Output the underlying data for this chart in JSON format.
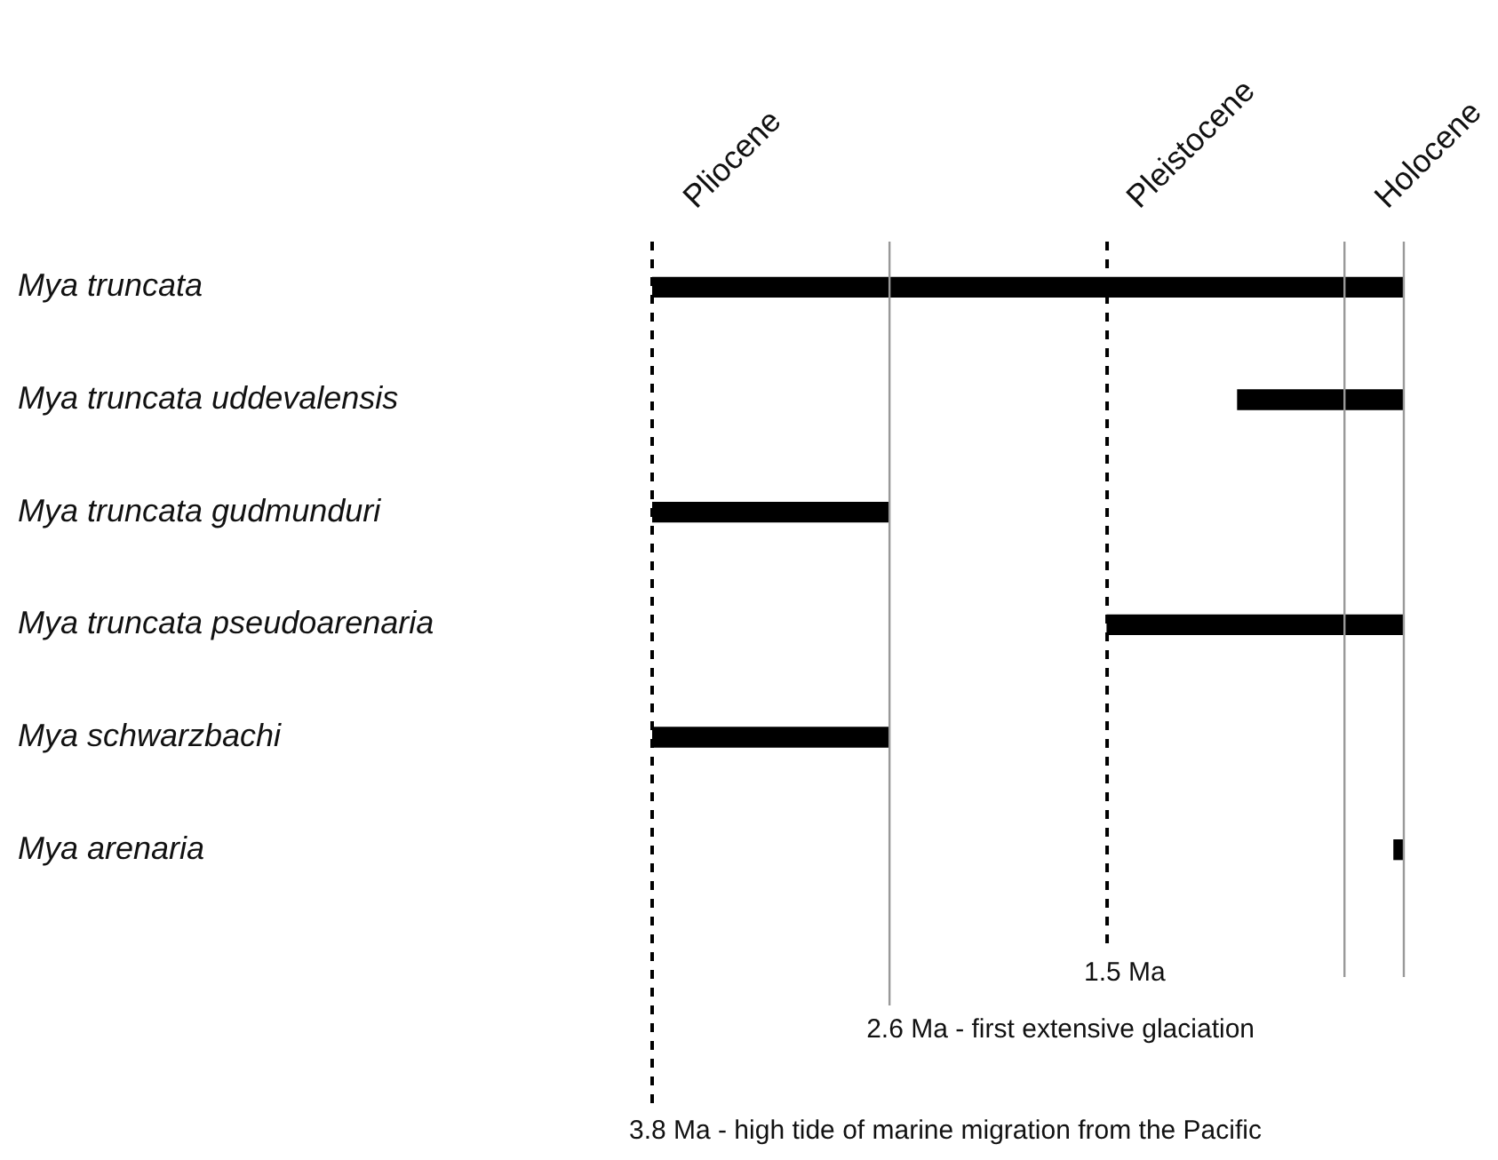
{
  "chart_data": {
    "type": "bar",
    "orientation": "horizontal",
    "categories": [
      "Mya truncata",
      "Mya truncata uddevalensis",
      "Mya truncata gudmunduri",
      "Mya truncata pseudoarenaria",
      "Mya schwarzbachi",
      "Mya arenaria"
    ],
    "values": [
      3.8,
      0.84,
      1.2,
      1.5,
      1.2,
      0.05
    ],
    "base": [
      0,
      0,
      2.6,
      0,
      2.6,
      0
    ],
    "color": "#000000",
    "xlim": [
      3.8,
      0
    ],
    "tick_labels": "y",
    "grid": false,
    "legend": false,
    "ref_lines": [
      {
        "axis": "x",
        "value": 3.8,
        "label": "3.8 Ma - high tide of marine migration from the Pacific",
        "color": "#000000",
        "line_style": "dashed"
      },
      {
        "axis": "x",
        "value": 2.6,
        "label": "2.6 Ma - first extensive glaciation",
        "color": "#999999",
        "line_style": "solid"
      },
      {
        "axis": "x",
        "value": 1.5,
        "label": "1.5 Ma",
        "color": "#000000",
        "line_style": "dashed"
      },
      {
        "axis": "x",
        "value": 0.3,
        "color": "#999999",
        "line_style": "solid"
      },
      {
        "axis": "x",
        "value": 0,
        "color": "#999999",
        "line_style": "solid"
      }
    ],
    "annotations": [
      "Pliocene",
      "Pleistocene",
      "Holocene"
    ]
  }
}
